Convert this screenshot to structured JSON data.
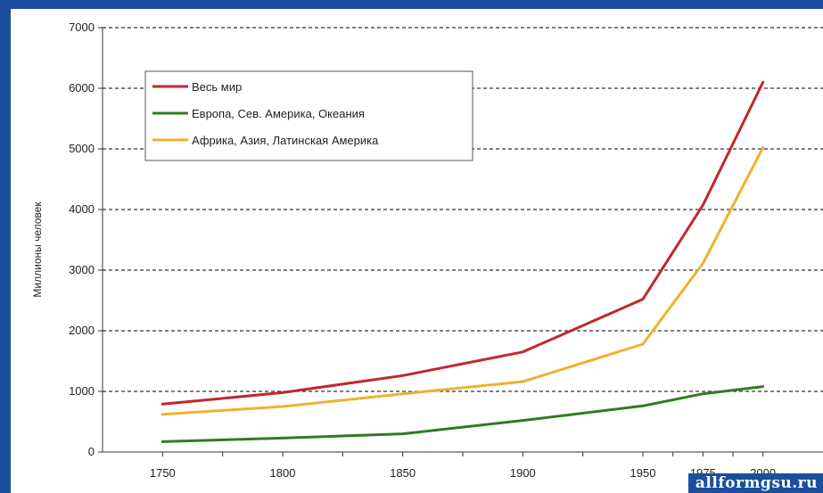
{
  "chart_data": {
    "type": "line",
    "ylabel": "Миллионы человек",
    "xlabel": "",
    "x": [
      1750,
      1800,
      1850,
      1900,
      1950,
      1975,
      2000
    ],
    "x_ticks": [
      "1750",
      "1800",
      "1850",
      "1900",
      "1950",
      "1975",
      "2000"
    ],
    "y_ticks": [
      "0",
      "1000",
      "2000",
      "3000",
      "4000",
      "5000",
      "6000",
      "7000"
    ],
    "ylim": [
      0,
      7000
    ],
    "xlim": [
      1725,
      2025
    ],
    "grid": "horizontal dashed",
    "legend_position": "top-left",
    "series": [
      {
        "name": "Весь мир",
        "color": "#c0282d",
        "values": [
          790,
          980,
          1260,
          1650,
          2520,
          4070,
          6100
        ]
      },
      {
        "name": "Европа, Сев. Америка, Океания",
        "color": "#2e7d1f",
        "values": [
          170,
          230,
          300,
          520,
          760,
          960,
          1080
        ]
      },
      {
        "name": "Африка, Азия, Латинская Америка",
        "color": "#f0b030",
        "values": [
          620,
          750,
          960,
          1160,
          1780,
          3110,
          5020
        ]
      }
    ]
  },
  "watermark": "allformgsu.ru"
}
